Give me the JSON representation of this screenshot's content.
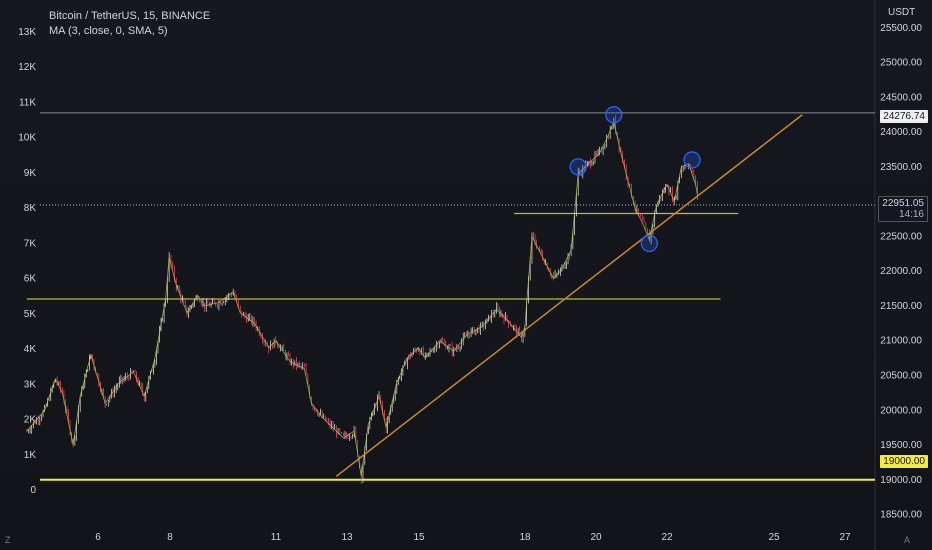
{
  "header": {
    "symbol_line": "Bitcoin / TetherUS, 15, BINANCE",
    "indicator_line": "MA (3, close, 0, SMA, 5)",
    "currency": "USDT"
  },
  "corner_labels": {
    "bottom_left": "Z",
    "bottom_right": "A"
  },
  "colors": {
    "background": "#131722",
    "candle_up": "#e8e8e8",
    "candle_down": "#ff4f6d",
    "ma_line": "#b7c44a",
    "trendline": "#c7892a",
    "level_yellow": "#f3e940",
    "level_olive": "#b9bd3c",
    "circle": "#2962ff"
  },
  "chart_data": {
    "type": "line",
    "title": "Bitcoin / TetherUS, 15, BINANCE",
    "ylabel": "USDT",
    "x_ticks": [
      "6",
      "8",
      "11",
      "13",
      "15",
      "18",
      "20",
      "22",
      "25",
      "27"
    ],
    "y_ticks": [
      "18500.00",
      "19000.00",
      "19500.00",
      "20000.00",
      "20500.00",
      "21000.00",
      "21500.00",
      "22000.00",
      "22500.00",
      "23000.00",
      "23500.00",
      "24000.00",
      "24500.00",
      "25000.00",
      "25500.00"
    ],
    "y_ticks_left": [
      "0",
      "1K",
      "2K",
      "3K",
      "4K",
      "5K",
      "6K",
      "7K",
      "8K",
      "9K",
      "10K",
      "11K",
      "12K",
      "13K"
    ],
    "ylim": [
      18350,
      25900
    ],
    "x_domain": [
      4.0,
      28.8
    ],
    "grid": false,
    "price_path": [
      [
        4.0,
        19700
      ],
      [
        4.5,
        20000
      ],
      [
        4.8,
        20450
      ],
      [
        5.0,
        20250
      ],
      [
        5.3,
        19500
      ],
      [
        5.5,
        20200
      ],
      [
        5.8,
        20800
      ],
      [
        6.2,
        20100
      ],
      [
        6.6,
        20400
      ],
      [
        7.0,
        20550
      ],
      [
        7.3,
        20200
      ],
      [
        7.6,
        20750
      ],
      [
        7.9,
        21600
      ],
      [
        8.0,
        22200
      ],
      [
        8.2,
        21800
      ],
      [
        8.5,
        21400
      ],
      [
        8.8,
        21650
      ],
      [
        9.0,
        21500
      ],
      [
        9.4,
        21550
      ],
      [
        9.8,
        21700
      ],
      [
        10.0,
        21400
      ],
      [
        10.4,
        21250
      ],
      [
        10.8,
        20900
      ],
      [
        11.0,
        21000
      ],
      [
        11.4,
        20700
      ],
      [
        11.8,
        20600
      ],
      [
        12.0,
        20100
      ],
      [
        12.3,
        19900
      ],
      [
        12.7,
        19700
      ],
      [
        12.9,
        19600
      ],
      [
        13.2,
        19700
      ],
      [
        13.4,
        19050
      ],
      [
        13.6,
        19800
      ],
      [
        13.9,
        20200
      ],
      [
        14.1,
        19750
      ],
      [
        14.4,
        20400
      ],
      [
        14.7,
        20750
      ],
      [
        15.0,
        20900
      ],
      [
        15.2,
        20750
      ],
      [
        15.6,
        21000
      ],
      [
        16.0,
        20850
      ],
      [
        16.4,
        21100
      ],
      [
        16.8,
        21200
      ],
      [
        17.2,
        21450
      ],
      [
        17.5,
        21300
      ],
      [
        17.9,
        21050
      ],
      [
        18.0,
        21200
      ],
      [
        18.2,
        22500
      ],
      [
        18.5,
        22200
      ],
      [
        18.8,
        21900
      ],
      [
        19.0,
        22000
      ],
      [
        19.3,
        22300
      ],
      [
        19.5,
        23400
      ],
      [
        19.8,
        23550
      ],
      [
        20.1,
        23700
      ],
      [
        20.3,
        23900
      ],
      [
        20.5,
        24150
      ],
      [
        20.7,
        23700
      ],
      [
        20.9,
        23300
      ],
      [
        21.1,
        22900
      ],
      [
        21.3,
        22700
      ],
      [
        21.5,
        22450
      ],
      [
        21.7,
        22950
      ],
      [
        22.0,
        23250
      ],
      [
        22.2,
        23000
      ],
      [
        22.4,
        23500
      ],
      [
        22.6,
        23550
      ],
      [
        22.8,
        23250
      ],
      [
        22.9,
        22950
      ]
    ],
    "ma_label": "MA (3, close, 0, SMA, 5)",
    "horizontal_levels": [
      {
        "price": 24276.74,
        "label": "24276.74",
        "style": "thin-gray"
      },
      {
        "price": 22951.05,
        "label": "22951.05",
        "sublabel": "14:16",
        "style": "dotted-current"
      },
      {
        "price": 22830,
        "style": "olive",
        "x_start": 17.7,
        "x_end": 24.0
      },
      {
        "price": 21600,
        "style": "olive",
        "x_start": 4.0,
        "x_end": 23.5
      },
      {
        "price": 19000.0,
        "label": "19000.00",
        "style": "yellow-thick"
      }
    ],
    "trendline": {
      "from": [
        12.7,
        19050
      ],
      "to": [
        25.8,
        24250
      ]
    },
    "circled_points": [
      {
        "x": 19.5,
        "y": 23500
      },
      {
        "x": 20.5,
        "y": 24250
      },
      {
        "x": 21.5,
        "y": 22400
      },
      {
        "x": 22.7,
        "y": 23600
      }
    ]
  }
}
